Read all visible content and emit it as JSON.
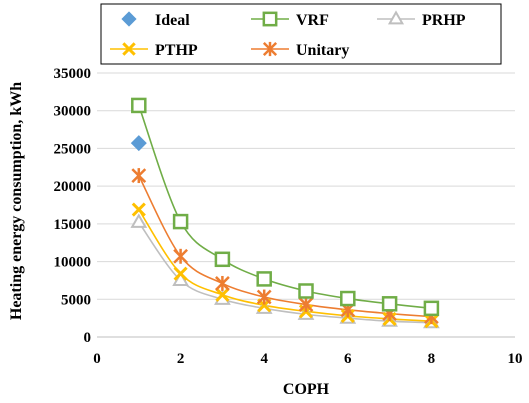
{
  "chart_data": {
    "type": "scatter",
    "title": "",
    "xlabel": "COPH",
    "ylabel": "Heating energy consumption, kWh",
    "xlim": [
      0,
      10
    ],
    "ylim": [
      0,
      35000
    ],
    "xticks": [
      0,
      2,
      4,
      6,
      8,
      10
    ],
    "yticks": [
      0,
      5000,
      10000,
      15000,
      20000,
      25000,
      30000,
      35000
    ],
    "grid": "horizontal",
    "legend_position": "top",
    "series": [
      {
        "name": "Ideal",
        "color": "#5b9bd5",
        "marker": "diamond",
        "line": false,
        "x": [
          1
        ],
        "y": [
          25700
        ]
      },
      {
        "name": "VRF",
        "color": "#70ad47",
        "marker": "square-open",
        "line": true,
        "x": [
          1,
          2,
          3,
          4,
          5,
          6,
          7,
          8
        ],
        "y": [
          30700,
          15300,
          10300,
          7700,
          6100,
          5100,
          4400,
          3800
        ]
      },
      {
        "name": "PRHP",
        "color": "#bfbfbf",
        "marker": "triangle-open",
        "line": true,
        "x": [
          1,
          2,
          3,
          4,
          5,
          6,
          7,
          8
        ],
        "y": [
          15200,
          7500,
          5000,
          3800,
          3000,
          2500,
          2100,
          1900
        ]
      },
      {
        "name": "PTHP",
        "color": "#ffc000",
        "marker": "x",
        "line": true,
        "x": [
          1,
          2,
          3,
          4,
          5,
          6,
          7,
          8
        ],
        "y": [
          16900,
          8400,
          5600,
          4200,
          3400,
          2800,
          2400,
          2100
        ]
      },
      {
        "name": "Unitary",
        "color": "#ed7d31",
        "marker": "asterisk",
        "line": true,
        "x": [
          1,
          2,
          3,
          4,
          5,
          6,
          7,
          8
        ],
        "y": [
          21400,
          10700,
          7100,
          5300,
          4300,
          3600,
          3100,
          2700
        ]
      }
    ]
  }
}
